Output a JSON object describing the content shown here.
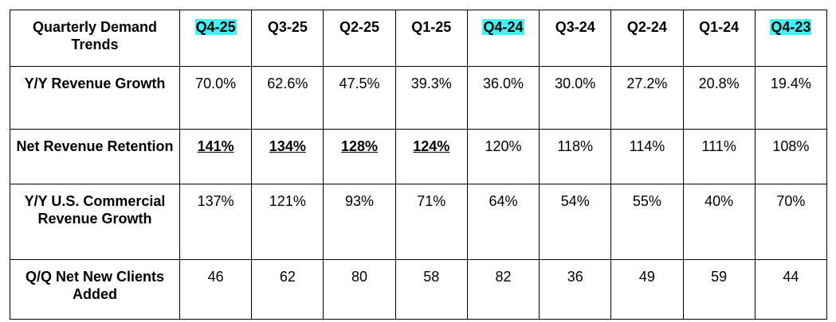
{
  "table": {
    "header": {
      "title": "Quarterly Demand Trends",
      "columns": [
        "Q4-25",
        "Q3-25",
        "Q2-25",
        "Q1-25",
        "Q4-24",
        "Q3-24",
        "Q2-24",
        "Q1-24",
        "Q4-23"
      ],
      "highlighted": [
        0,
        4,
        8
      ],
      "highlight_color": "#40f2f2"
    },
    "rows": [
      {
        "label": "Y/Y Revenue Growth",
        "cells": [
          "70.0%",
          "62.6%",
          "47.5%",
          "39.3%",
          "36.0%",
          "30.0%",
          "27.2%",
          "20.8%",
          "19.4%"
        ]
      },
      {
        "label": "Net Revenue Retention",
        "cells": [
          "141%",
          "134%",
          "128%",
          "124%",
          "120%",
          "118%",
          "114%",
          "111%",
          "108%"
        ],
        "bold_underlined": [
          0,
          1,
          2,
          3
        ]
      },
      {
        "label": "Y/Y U.S. Commercial Revenue Growth",
        "cells": [
          "137%",
          "121%",
          "93%",
          "71%",
          "64%",
          "54%",
          "55%",
          "40%",
          "70%"
        ]
      },
      {
        "label": "Q/Q Net New Clients Added",
        "cells": [
          "46",
          "62",
          "80",
          "58",
          "82",
          "36",
          "49",
          "59",
          "44"
        ]
      }
    ]
  }
}
